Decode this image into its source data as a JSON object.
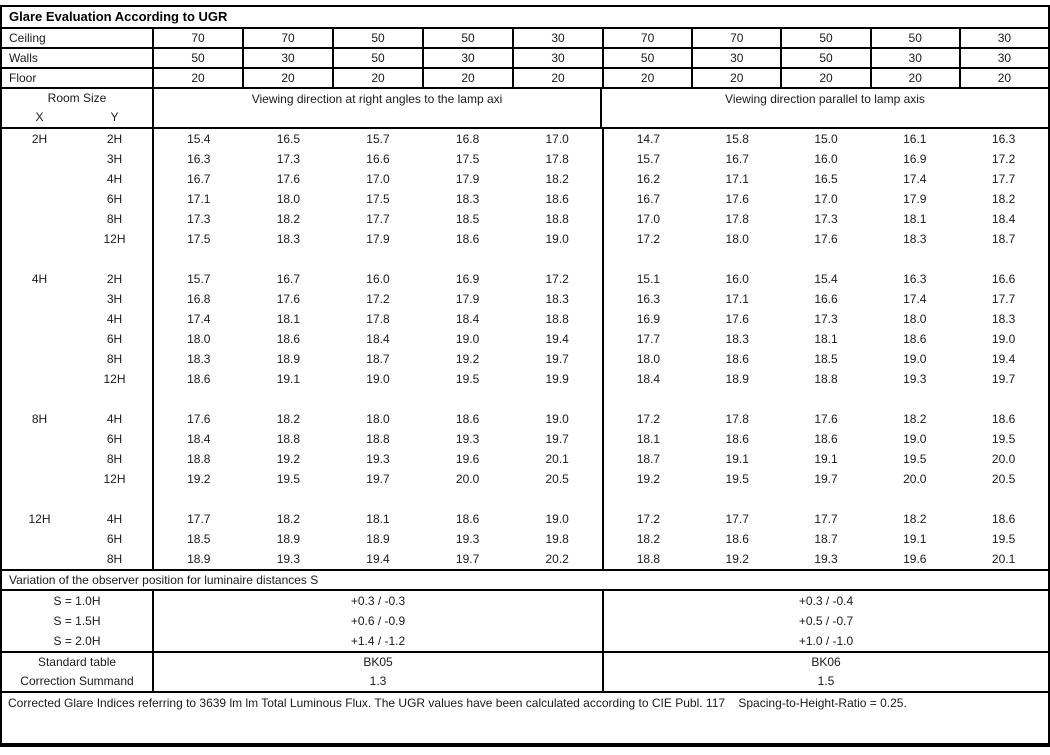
{
  "title": "Glare Evaluation According to UGR",
  "surface_rows": [
    {
      "label": "Ceiling",
      "values": [
        "70",
        "70",
        "50",
        "50",
        "30",
        "70",
        "70",
        "50",
        "50",
        "30"
      ]
    },
    {
      "label": "Walls",
      "values": [
        "50",
        "30",
        "50",
        "30",
        "30",
        "50",
        "30",
        "50",
        "30",
        "30"
      ]
    },
    {
      "label": "Floor",
      "values": [
        "20",
        "20",
        "20",
        "20",
        "20",
        "20",
        "20",
        "20",
        "20",
        "20"
      ]
    }
  ],
  "header": {
    "room_size": "Room Size",
    "x": "X",
    "y": "Y",
    "left_heading": "Viewing direction at right angles to the lamp axi",
    "right_heading": "Viewing direction parallel to lamp axis"
  },
  "blocks": [
    {
      "x": "2H",
      "rows": [
        {
          "y": "2H",
          "left": [
            "15.4",
            "16.5",
            "15.7",
            "16.8",
            "17.0"
          ],
          "right": [
            "14.7",
            "15.8",
            "15.0",
            "16.1",
            "16.3"
          ]
        },
        {
          "y": "3H",
          "left": [
            "16.3",
            "17.3",
            "16.6",
            "17.5",
            "17.8"
          ],
          "right": [
            "15.7",
            "16.7",
            "16.0",
            "16.9",
            "17.2"
          ]
        },
        {
          "y": "4H",
          "left": [
            "16.7",
            "17.6",
            "17.0",
            "17.9",
            "18.2"
          ],
          "right": [
            "16.2",
            "17.1",
            "16.5",
            "17.4",
            "17.7"
          ]
        },
        {
          "y": "6H",
          "left": [
            "17.1",
            "18.0",
            "17.5",
            "18.3",
            "18.6"
          ],
          "right": [
            "16.7",
            "17.6",
            "17.0",
            "17.9",
            "18.2"
          ]
        },
        {
          "y": "8H",
          "left": [
            "17.3",
            "18.2",
            "17.7",
            "18.5",
            "18.8"
          ],
          "right": [
            "17.0",
            "17.8",
            "17.3",
            "18.1",
            "18.4"
          ]
        },
        {
          "y": "12H",
          "left": [
            "17.5",
            "18.3",
            "17.9",
            "18.6",
            "19.0"
          ],
          "right": [
            "17.2",
            "18.0",
            "17.6",
            "18.3",
            "18.7"
          ]
        }
      ]
    },
    {
      "x": "4H",
      "rows": [
        {
          "y": "2H",
          "left": [
            "15.7",
            "16.7",
            "16.0",
            "16.9",
            "17.2"
          ],
          "right": [
            "15.1",
            "16.0",
            "15.4",
            "16.3",
            "16.6"
          ]
        },
        {
          "y": "3H",
          "left": [
            "16.8",
            "17.6",
            "17.2",
            "17.9",
            "18.3"
          ],
          "right": [
            "16.3",
            "17.1",
            "16.6",
            "17.4",
            "17.7"
          ]
        },
        {
          "y": "4H",
          "left": [
            "17.4",
            "18.1",
            "17.8",
            "18.4",
            "18.8"
          ],
          "right": [
            "16.9",
            "17.6",
            "17.3",
            "18.0",
            "18.3"
          ]
        },
        {
          "y": "6H",
          "left": [
            "18.0",
            "18.6",
            "18.4",
            "19.0",
            "19.4"
          ],
          "right": [
            "17.7",
            "18.3",
            "18.1",
            "18.6",
            "19.0"
          ]
        },
        {
          "y": "8H",
          "left": [
            "18.3",
            "18.9",
            "18.7",
            "19.2",
            "19.7"
          ],
          "right": [
            "18.0",
            "18.6",
            "18.5",
            "19.0",
            "19.4"
          ]
        },
        {
          "y": "12H",
          "left": [
            "18.6",
            "19.1",
            "19.0",
            "19.5",
            "19.9"
          ],
          "right": [
            "18.4",
            "18.9",
            "18.8",
            "19.3",
            "19.7"
          ]
        }
      ]
    },
    {
      "x": "8H",
      "rows": [
        {
          "y": "4H",
          "left": [
            "17.6",
            "18.2",
            "18.0",
            "18.6",
            "19.0"
          ],
          "right": [
            "17.2",
            "17.8",
            "17.6",
            "18.2",
            "18.6"
          ]
        },
        {
          "y": "6H",
          "left": [
            "18.4",
            "18.8",
            "18.8",
            "19.3",
            "19.7"
          ],
          "right": [
            "18.1",
            "18.6",
            "18.6",
            "19.0",
            "19.5"
          ]
        },
        {
          "y": "8H",
          "left": [
            "18.8",
            "19.2",
            "19.3",
            "19.6",
            "20.1"
          ],
          "right": [
            "18.7",
            "19.1",
            "19.1",
            "19.5",
            "20.0"
          ]
        },
        {
          "y": "12H",
          "left": [
            "19.2",
            "19.5",
            "19.7",
            "20.0",
            "20.5"
          ],
          "right": [
            "19.2",
            "19.5",
            "19.7",
            "20.0",
            "20.5"
          ]
        }
      ]
    },
    {
      "x": "12H",
      "rows": [
        {
          "y": "4H",
          "left": [
            "17.7",
            "18.2",
            "18.1",
            "18.6",
            "19.0"
          ],
          "right": [
            "17.2",
            "17.7",
            "17.7",
            "18.2",
            "18.6"
          ]
        },
        {
          "y": "6H",
          "left": [
            "18.5",
            "18.9",
            "18.9",
            "19.3",
            "19.8"
          ],
          "right": [
            "18.2",
            "18.6",
            "18.7",
            "19.1",
            "19.5"
          ]
        },
        {
          "y": "8H",
          "left": [
            "18.9",
            "19.3",
            "19.4",
            "19.7",
            "20.2"
          ],
          "right": [
            "18.8",
            "19.2",
            "19.3",
            "19.6",
            "20.1"
          ]
        }
      ]
    }
  ],
  "variation": {
    "heading": "Variation of the observer position for luminaire distances S",
    "rows": [
      {
        "label": "S = 1.0H",
        "left": "+0.3 / -0.3",
        "right": "+0.3 / -0.4"
      },
      {
        "label": "S = 1.5H",
        "left": "+0.6 / -0.9",
        "right": "+0.5 / -0.7"
      },
      {
        "label": "S = 2.0H",
        "left": "+1.4 / -1.2",
        "right": "+1.0 / -1.0"
      }
    ]
  },
  "summary": {
    "standard_table_label": "Standard table",
    "standard_table_left": "BK05",
    "standard_table_right": "BK06",
    "correction_label": "Correction Summand",
    "correction_left": "1.3",
    "correction_right": "1.5"
  },
  "footer_note": "Corrected Glare Indices referring to 3639 lm lm Total Luminous Flux. The UGR values have been calculated according to CIE Publ. 117    Spacing-to-Height-Ratio = 0.25."
}
